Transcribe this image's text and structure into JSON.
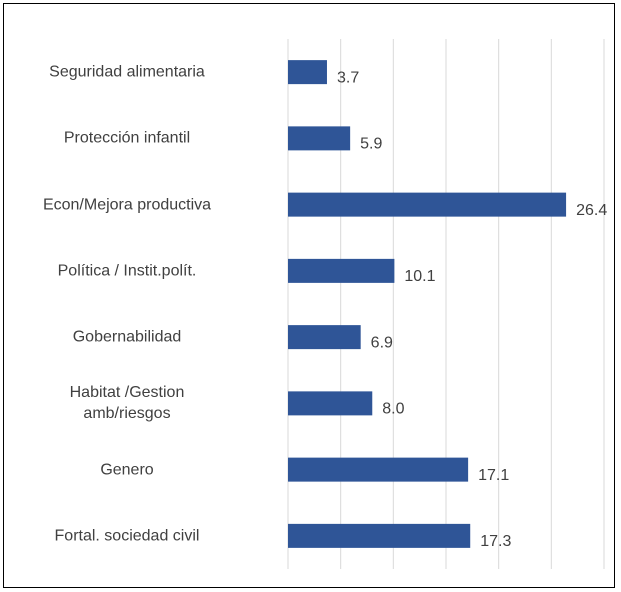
{
  "chart_data": {
    "type": "bar",
    "orientation": "horizontal",
    "categories": [
      "Seguridad alimentaria",
      "Protección infantil",
      "Econ/Mejora productiva",
      "Política / Instit.polít.",
      "Gobernabilidad",
      "Habitat /Gestion\namb/riesgos",
      "Genero",
      "Fortal. sociedad civil"
    ],
    "values": [
      3.7,
      5.9,
      26.4,
      10.1,
      6.9,
      8.0,
      17.1,
      17.3
    ],
    "value_labels": [
      "3.7",
      "5.9",
      "26.4",
      "10.1",
      "6.9",
      "8.0",
      "17.1",
      "17.3"
    ],
    "color": "#2f5597",
    "xlim": [
      0,
      30
    ],
    "xticks": [
      0,
      5,
      10,
      15,
      20,
      25,
      30
    ],
    "grid": true
  }
}
